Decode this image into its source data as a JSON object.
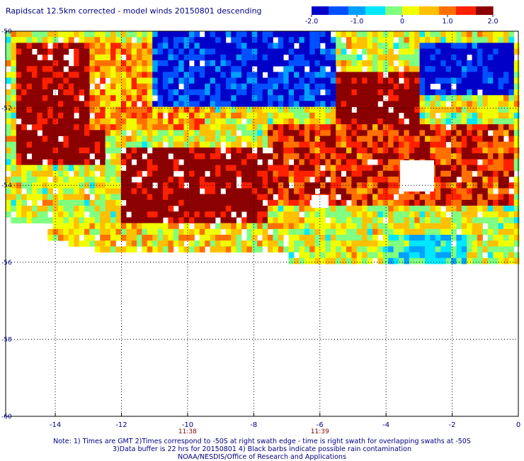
{
  "title": "Rapidscat 12.5km corrected - model winds 20150801 descending",
  "colorbar": {
    "ticks": [
      "-2.0",
      "-1.0",
      "0",
      "1.0",
      "2.0"
    ],
    "range": [
      -2.0,
      2.0
    ],
    "colors": [
      "#0000c8",
      "#0050ff",
      "#00a0ff",
      "#00e8ff",
      "#80ff80",
      "#f0ff00",
      "#ffc000",
      "#ff7000",
      "#ff2000",
      "#8b0000"
    ]
  },
  "chart_data": {
    "type": "heatmap",
    "title": "Rapidscat 12.5km corrected - model winds 20150801 descending",
    "xlim": [
      -15.5,
      0
    ],
    "ylim": [
      -60,
      -50
    ],
    "x_ticks": [
      "-14",
      "-12",
      "-10",
      "-8",
      "-6",
      "-4",
      "-2",
      "0"
    ],
    "y_ticks": [
      "-50",
      "-52",
      "-54",
      "-56",
      "-58",
      "-60"
    ],
    "grid": true,
    "time_labels": [
      {
        "x": -10,
        "text": "11:38"
      },
      {
        "x": -6,
        "text": "11:39"
      }
    ],
    "value_range": [
      -2.0,
      2.0
    ],
    "regions": [
      {
        "lon_range": [
          -15.2,
          -12.5
        ],
        "lat_range": [
          -53.5,
          -50.3
        ],
        "value": 2.0
      },
      {
        "lon_range": [
          -13.0,
          -9.5
        ],
        "lat_range": [
          -52.5,
          -50.3
        ],
        "value": 0.8
      },
      {
        "lon_range": [
          -11.0,
          -5.5
        ],
        "lat_range": [
          -52.0,
          -50.0
        ],
        "value": -1.6
      },
      {
        "lon_range": [
          -3.0,
          -0.2
        ],
        "lat_range": [
          -51.7,
          -50.3
        ],
        "value": -1.8
      },
      {
        "lon_range": [
          -12.0,
          -7.5
        ],
        "lat_range": [
          -55.6,
          -53.0
        ],
        "value": 2.0
      },
      {
        "lon_range": [
          -5.5,
          -3.0
        ],
        "lat_range": [
          -52.4,
          -51.0
        ],
        "value": 2.0
      },
      {
        "lon_range": [
          -7.5,
          -0.2
        ],
        "lat_range": [
          -54.5,
          -52.4
        ],
        "value": 1.4
      },
      {
        "lon_range": [
          -15.2,
          -7.0
        ],
        "lat_range": [
          -56.0,
          -55.0
        ],
        "value": 0.4
      },
      {
        "lon_range": [
          -4.0,
          -1.5
        ],
        "lat_range": [
          -56.0,
          -55.3
        ],
        "value": -0.6
      }
    ]
  },
  "notes": {
    "line1": "Note: 1) Times are GMT 2)Times correspond to -50S at right swath edge - time is right swath for overlapping swaths at -50S",
    "line2": "3)Data buffer is 22 hrs for 20150801 4) Black barbs indicate possible rain contamination",
    "line3": "NOAA/NESDIS/Office of Research and Applications"
  }
}
